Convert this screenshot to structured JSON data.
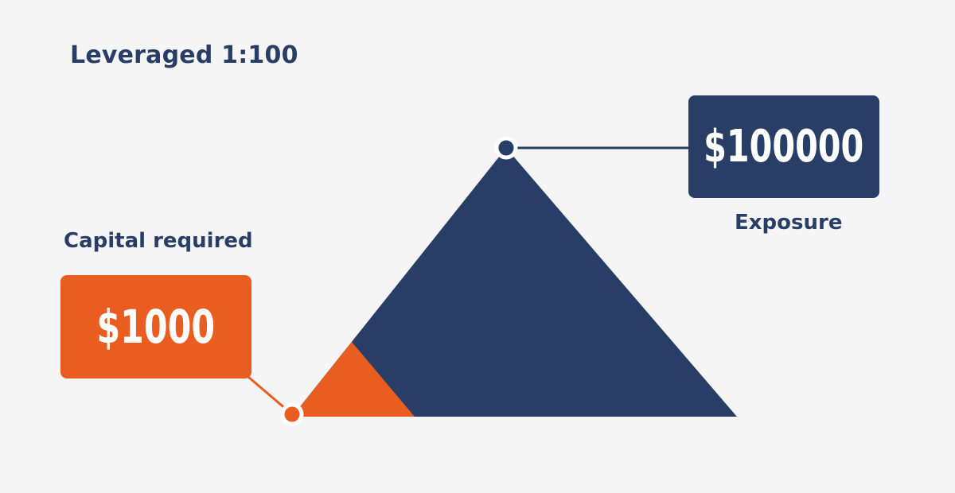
{
  "title": "Leveraged 1:100",
  "capital": {
    "label": "Capital required",
    "value": "$1000"
  },
  "exposure": {
    "label": "Exposure",
    "value": "$100000"
  },
  "colors": {
    "navy": "#283e66",
    "orange": "#e95e20",
    "background": "#f5f5f5"
  }
}
